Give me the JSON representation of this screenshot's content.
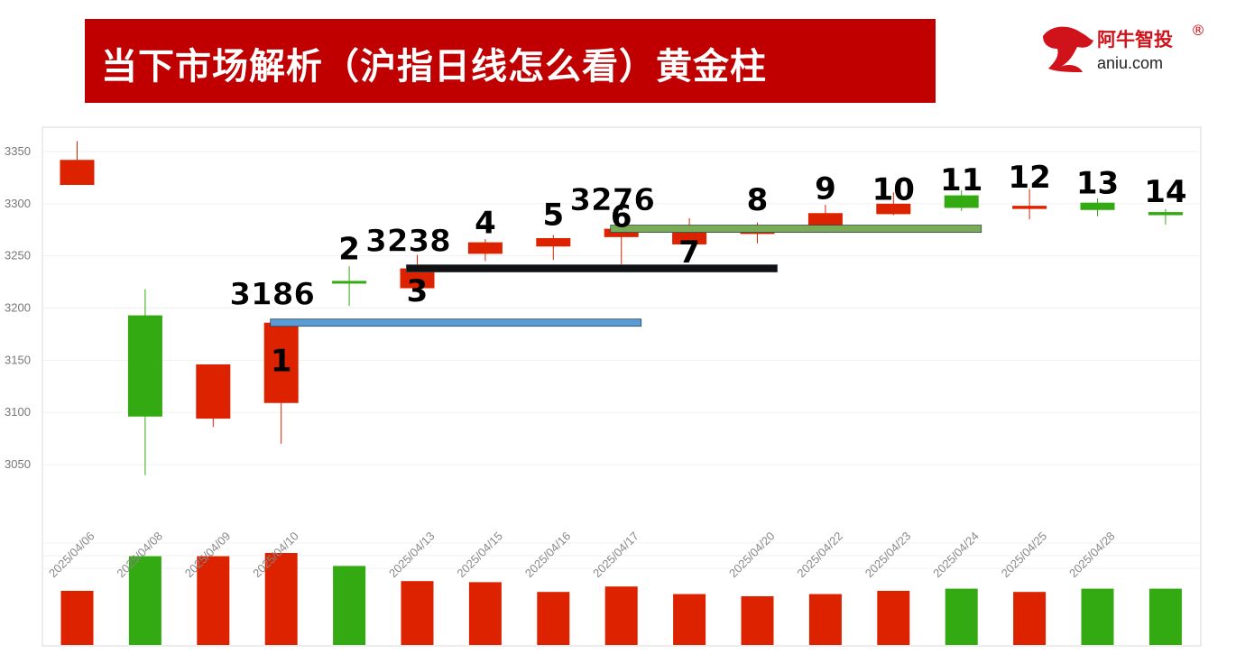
{
  "header": {
    "title": "当下市场解析（沪指日线怎么看）黄金柱"
  },
  "logo": {
    "name_cn": "阿牛智投",
    "domain": "aniu.com",
    "registered_mark": "®"
  },
  "colors": {
    "title_bg": "#c00000",
    "up_red": "#dd2200",
    "down_green": "#33aa11",
    "line_blue": "#5b9bd5",
    "line_black": "#111111",
    "line_green": "#7aab55"
  },
  "chart_data": {
    "type": "candlestick",
    "ylim": [
      3000,
      3360
    ],
    "y_ticks": [
      3050,
      3100,
      3150,
      3200,
      3250,
      3300,
      3350
    ],
    "x_tick_labels": [
      "2025/04/06",
      "2025/04/08",
      "2025/04/09",
      "2025/04/10",
      "2025/04/13",
      "2025/04/15",
      "2025/04/16",
      "2025/04/17",
      "2025/04/20",
      "2025/04/22",
      "2025/04/23",
      "2025/04/24",
      "2025/04/25",
      "2025/04/28"
    ],
    "candles": [
      {
        "idx": 0,
        "open": 3318,
        "close": 3342,
        "high": 3360,
        "low": 3318,
        "color": "up",
        "volume": 50
      },
      {
        "idx": 1,
        "open": 3193,
        "close": 3096,
        "high": 3218,
        "low": 3040,
        "color": "down",
        "volume": 82
      },
      {
        "idx": 2,
        "open": 3094,
        "close": 3146,
        "high": 3146,
        "low": 3086,
        "color": "up",
        "volume": 82
      },
      {
        "idx": 3,
        "open": 3109,
        "close": 3186,
        "high": 3186,
        "low": 3070,
        "color": "up",
        "volume": 85
      },
      {
        "idx": 4,
        "open": 3226,
        "close": 3224,
        "high": 3240,
        "low": 3202,
        "color": "down",
        "volume": 73
      },
      {
        "idx": 5,
        "open": 3219,
        "close": 3238,
        "high": 3251,
        "low": 3218,
        "color": "up",
        "volume": 59
      },
      {
        "idx": 6,
        "open": 3252,
        "close": 3263,
        "high": 3266,
        "low": 3245,
        "color": "up",
        "volume": 58
      },
      {
        "idx": 7,
        "open": 3259,
        "close": 3267,
        "high": 3270,
        "low": 3246,
        "color": "up",
        "volume": 49
      },
      {
        "idx": 8,
        "open": 3268,
        "close": 3276,
        "high": 3278,
        "low": 3242,
        "color": "up",
        "volume": 54
      },
      {
        "idx": 9,
        "open": 3261,
        "close": 3279,
        "high": 3286,
        "low": 3261,
        "color": "up",
        "volume": 47
      },
      {
        "idx": 10,
        "open": 3271,
        "close": 3279,
        "high": 3282,
        "low": 3262,
        "color": "up",
        "volume": 45
      },
      {
        "idx": 11,
        "open": 3273,
        "close": 3291,
        "high": 3299,
        "low": 3272,
        "color": "up",
        "volume": 47
      },
      {
        "idx": 12,
        "open": 3290,
        "close": 3300,
        "high": 3311,
        "low": 3289,
        "color": "up",
        "volume": 50
      },
      {
        "idx": 13,
        "open": 3308,
        "close": 3296,
        "high": 3313,
        "low": 3293,
        "color": "down",
        "volume": 52
      },
      {
        "idx": 14,
        "open": 3295,
        "close": 3298,
        "high": 3314,
        "low": 3285,
        "color": "up",
        "volume": 49
      },
      {
        "idx": 15,
        "open": 3301,
        "close": 3294,
        "high": 3305,
        "low": 3288,
        "color": "down",
        "volume": 52
      },
      {
        "idx": 16,
        "open": 3292,
        "close": 3289,
        "high": 3295,
        "low": 3280,
        "color": "down",
        "volume": 52
      }
    ],
    "x_label_slots": [
      0,
      1,
      2,
      3,
      5,
      6,
      7,
      8,
      10,
      11,
      12,
      13,
      14,
      15
    ],
    "annotations": [
      {
        "text": "1",
        "idx": 3,
        "y": 3150
      },
      {
        "text": "2",
        "idx": 4,
        "y": 3257
      },
      {
        "text": "3",
        "idx": 5,
        "y": 3217
      },
      {
        "text": "4",
        "idx": 6,
        "y": 3282
      },
      {
        "text": "5",
        "idx": 7,
        "y": 3290
      },
      {
        "text": "6",
        "idx": 8,
        "y": 3288
      },
      {
        "text": "7",
        "idx": 9,
        "y": 3254
      },
      {
        "text": "8",
        "idx": 10,
        "y": 3304
      },
      {
        "text": "9",
        "idx": 11,
        "y": 3315
      },
      {
        "text": "10",
        "idx": 12,
        "y": 3314
      },
      {
        "text": "11",
        "idx": 13,
        "y": 3323
      },
      {
        "text": "12",
        "idx": 14,
        "y": 3326
      },
      {
        "text": "13",
        "idx": 15,
        "y": 3320
      },
      {
        "text": "14",
        "idx": 16,
        "y": 3312
      }
    ],
    "level_labels": [
      {
        "text": "3186",
        "idx": 3,
        "y": 3214
      },
      {
        "text": "3238",
        "idx": 5,
        "y": 3265
      },
      {
        "text": "3276",
        "idx": 8,
        "y": 3304
      }
    ],
    "level_lines": [
      {
        "value": 3186,
        "from_idx": 3,
        "to_idx": 8,
        "color": "blue"
      },
      {
        "value": 3238,
        "from_idx": 5,
        "to_idx": 10,
        "color": "black"
      },
      {
        "value": 3276,
        "from_idx": 8,
        "to_idx": 13,
        "color": "green"
      }
    ]
  }
}
